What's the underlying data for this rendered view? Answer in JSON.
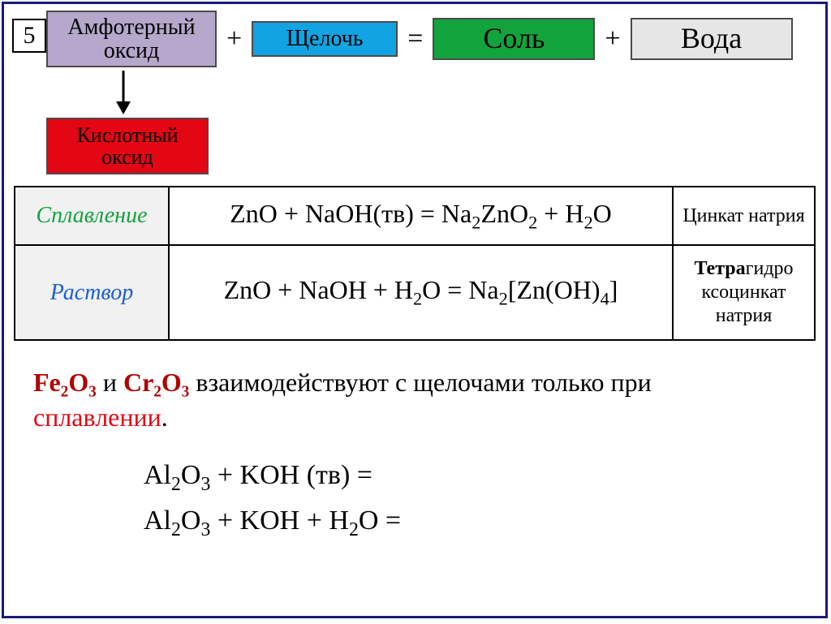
{
  "frame_border_color": "#1a1a7a",
  "number": "5",
  "equation_tiles": {
    "amphoteric": {
      "text": "Амфотерный оксид",
      "bg": "#b5a8cc"
    },
    "alkali": {
      "text": "Щелочь",
      "bg": "#12a3e2"
    },
    "salt": {
      "text": "Соль",
      "bg": "#12a33d"
    },
    "water": {
      "text": "Вода",
      "bg": "#e6e6e6"
    },
    "acid_oxide": {
      "text": "Кислотный оксид",
      "bg": "#e30613"
    }
  },
  "operators": {
    "plus": "+",
    "equals": "="
  },
  "arrow": {
    "color": "#000000",
    "length": 50,
    "stroke_width": 3
  },
  "reactions_table": {
    "rows": [
      {
        "label": "Сплавление",
        "label_color": "#12a33d",
        "equation_html": "ZnO + NaOH(тв) = Na<sub>2</sub>ZnO<sub>2</sub> + H<sub>2</sub>O",
        "product_html": "Цинкат натрия"
      },
      {
        "label": "Раствор",
        "label_color": "#1a5fd6",
        "equation_html": "ZnO + NaOH + H<sub>2</sub>O = Na<sub>2</sub>[Zn(OH)<sub>4</sub>]",
        "product_html": "<span class=\"tetra\">Тетра</span>гидро ксоцинкат натрия"
      }
    ]
  },
  "note_line": {
    "fe": "Fe₂O₃",
    "and": " и ",
    "cr": "Cr₂O₃",
    "rest1": " взаимодействуют с щелочами только при ",
    "fusion_word": "сплавлении",
    "period": "."
  },
  "extra_equations": [
    "Al<sub>2</sub>O<sub>3</sub> + KOH (тв) =",
    "Al<sub>2</sub>O<sub>3</sub> + KOH + H<sub>2</sub>O ="
  ],
  "colors": {
    "fusion_label": "#12a33d",
    "solution_label": "#1a5fd6",
    "red_text": "#e30613",
    "dark_red": "#b00000"
  },
  "fonts": {
    "family": "Times New Roman",
    "base_size_pt": 24
  }
}
